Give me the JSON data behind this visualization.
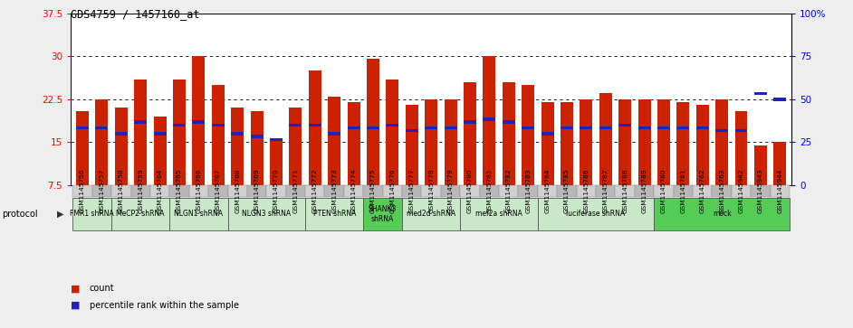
{
  "title": "GDS4759 / 1457160_at",
  "samples": [
    "GSM1145756",
    "GSM1145757",
    "GSM1145758",
    "GSM1145759",
    "GSM1145764",
    "GSM1145765",
    "GSM1145766",
    "GSM1145767",
    "GSM1145768",
    "GSM1145769",
    "GSM1145770",
    "GSM1145771",
    "GSM1145772",
    "GSM1145773",
    "GSM1145774",
    "GSM1145775",
    "GSM1145776",
    "GSM1145777",
    "GSM1145778",
    "GSM1145779",
    "GSM1145780",
    "GSM1145781",
    "GSM1145782",
    "GSM1145783",
    "GSM1145784",
    "GSM1145785",
    "GSM1145786",
    "GSM1145787",
    "GSM1145788",
    "GSM1145789",
    "GSM1145760",
    "GSM1145761",
    "GSM1145762",
    "GSM1145763",
    "GSM1145942",
    "GSM1145943",
    "GSM1145944"
  ],
  "red_values": [
    20.5,
    22.5,
    21.0,
    26.0,
    19.5,
    26.0,
    30.0,
    25.0,
    21.0,
    20.5,
    15.5,
    21.0,
    27.5,
    23.0,
    22.0,
    29.5,
    26.0,
    21.5,
    22.5,
    22.5,
    25.5,
    30.0,
    25.5,
    25.0,
    22.0,
    22.0,
    22.5,
    23.5,
    22.5,
    22.5,
    22.5,
    22.0,
    21.5,
    22.5,
    20.5,
    14.5,
    15.0
  ],
  "blue_values": [
    17.5,
    17.5,
    16.5,
    18.5,
    16.5,
    18.0,
    18.5,
    18.0,
    16.5,
    16.0,
    15.5,
    18.0,
    18.0,
    16.5,
    17.5,
    17.5,
    18.0,
    17.0,
    17.5,
    17.5,
    18.5,
    19.0,
    18.5,
    17.5,
    16.5,
    17.5,
    17.5,
    17.5,
    18.0,
    17.5,
    17.5,
    17.5,
    17.5,
    17.0,
    17.0,
    23.5,
    22.5
  ],
  "protocol_groups": [
    {
      "label": "FMR1 shRNA",
      "start": 0,
      "end": 1,
      "color": "#c8e8c8"
    },
    {
      "label": "MeCP2 shRNA",
      "start": 2,
      "end": 4,
      "color": "#c8e8c8"
    },
    {
      "label": "NLGN1 shRNA",
      "start": 5,
      "end": 7,
      "color": "#c8e8c8"
    },
    {
      "label": "NLGN3 shRNA",
      "start": 8,
      "end": 11,
      "color": "#c8e8c8"
    },
    {
      "label": "PTEN shRNA",
      "start": 12,
      "end": 14,
      "color": "#c8e8c8"
    },
    {
      "label": "SHANK3\nshRNA",
      "start": 15,
      "end": 16,
      "color": "#55cc55"
    },
    {
      "label": "med2d shRNA",
      "start": 17,
      "end": 19,
      "color": "#c8e8c8"
    },
    {
      "label": "mef2a shRNA",
      "start": 20,
      "end": 23,
      "color": "#c8e8c8"
    },
    {
      "label": "luciferase shRNA",
      "start": 24,
      "end": 29,
      "color": "#c8e8c8"
    },
    {
      "label": "mock",
      "start": 30,
      "end": 36,
      "color": "#55cc55"
    }
  ],
  "ylim_left": [
    7.5,
    37.5
  ],
  "ylim_right": [
    0,
    100
  ],
  "yticks_left": [
    7.5,
    15.0,
    22.5,
    30.0,
    37.5
  ],
  "yticks_right": [
    0,
    25,
    50,
    75,
    100
  ],
  "ytick_labels_left": [
    "7.5",
    "15",
    "22.5",
    "30",
    "37.5"
  ],
  "ytick_labels_right": [
    "0",
    "25",
    "50",
    "75",
    "100%"
  ],
  "bar_color": "#cc2200",
  "dot_color": "#2222bb",
  "fig_bg": "#eeeeee",
  "plot_bg": "#ffffff",
  "tick_bg_even": "#d0d0d0",
  "tick_bg_odd": "#b8b8b8"
}
